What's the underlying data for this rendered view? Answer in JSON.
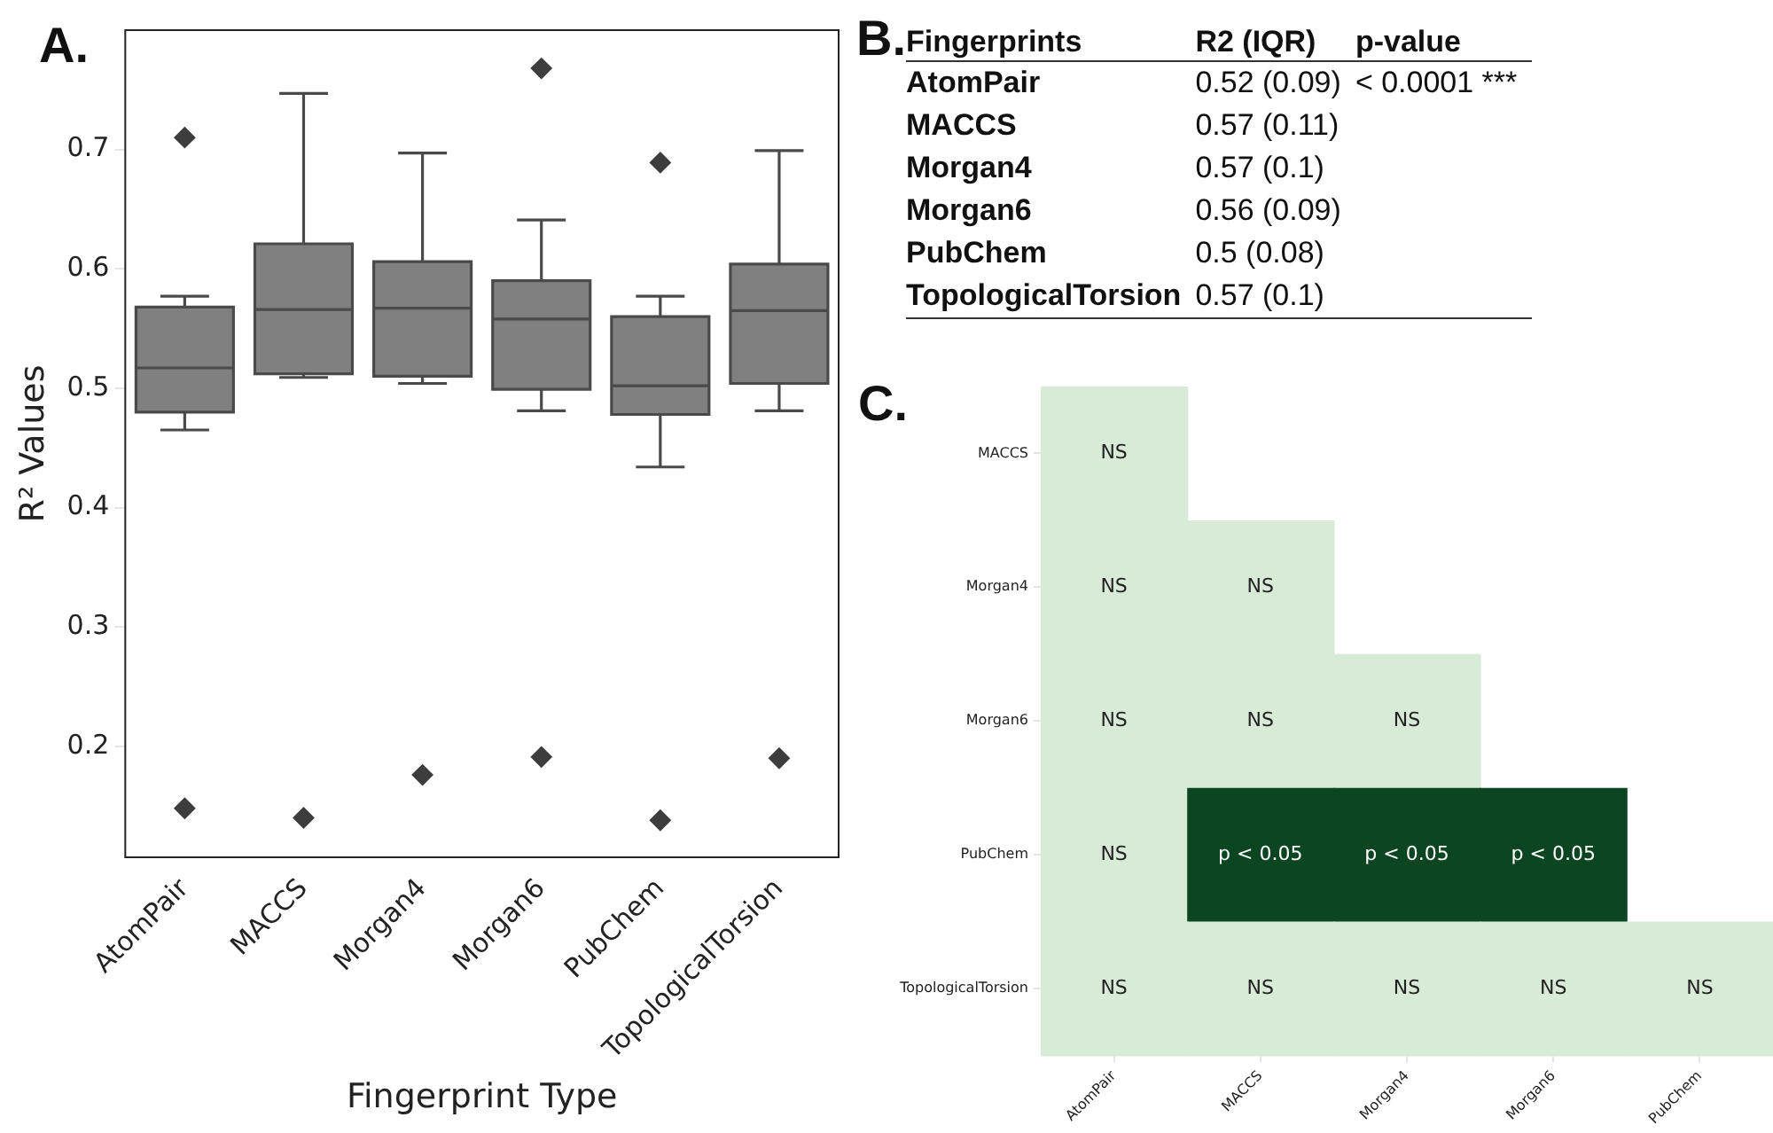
{
  "chart_data": [
    {
      "type": "box",
      "title": "A.",
      "xlabel": "Fingerprint Type",
      "ylabel": "R² Values",
      "categories": [
        "AtomPair",
        "MACCS",
        "Morgan4",
        "Morgan6",
        "PubChem",
        "TopologicalTorsion"
      ],
      "boxes": [
        {
          "low": 0.465,
          "q1": 0.48,
          "median": 0.517,
          "q3": 0.568,
          "high": 0.577,
          "outliers": [
            0.71,
            0.148
          ]
        },
        {
          "low": 0.509,
          "q1": 0.512,
          "median": 0.566,
          "q3": 0.621,
          "high": 0.747,
          "outliers": [
            0.14
          ]
        },
        {
          "low": 0.504,
          "q1": 0.51,
          "median": 0.567,
          "q3": 0.606,
          "high": 0.697,
          "outliers": [
            0.176
          ]
        },
        {
          "low": 0.481,
          "q1": 0.499,
          "median": 0.558,
          "q3": 0.59,
          "high": 0.641,
          "outliers": [
            0.768,
            0.191
          ]
        },
        {
          "low": 0.434,
          "q1": 0.478,
          "median": 0.502,
          "q3": 0.56,
          "high": 0.577,
          "outliers": [
            0.689,
            0.138
          ]
        },
        {
          "low": 0.481,
          "q1": 0.504,
          "median": 0.565,
          "q3": 0.604,
          "high": 0.699,
          "outliers": [
            0.19
          ]
        }
      ],
      "color": "#808080",
      "marker": "diamond",
      "ylim": [
        0.107,
        0.8
      ],
      "yticks": [
        0.2,
        0.3,
        0.4,
        0.5,
        0.6,
        0.7
      ]
    },
    {
      "type": "other",
      "title": "B.",
      "ylabel": "Fingerprints",
      "categories": [
        "R2 (IQR)",
        "p-value"
      ],
      "y_categories": [
        "AtomPair",
        "MACCS",
        "Morgan4",
        "Morgan6",
        "PubChem",
        "TopologicalTorsion"
      ],
      "cell_labels": [
        [
          "0.52 (0.09)",
          "< 0.0001 ***"
        ],
        [
          "0.57 (0.11)",
          null
        ],
        [
          "0.57 (0.1)",
          null
        ],
        [
          "0.56 (0.09)",
          null
        ],
        [
          "0.5 (0.08)",
          null
        ],
        [
          "0.57 (0.1)",
          null
        ]
      ]
    },
    {
      "type": "other",
      "title": "C.",
      "categories": [
        "AtomPair",
        "MACCS",
        "Morgan4",
        "Morgan6",
        "PubChem"
      ],
      "y_categories": [
        "MACCS",
        "Morgan4",
        "Morgan6",
        "PubChem",
        "TopologicalTorsion"
      ],
      "cell_labels": [
        [
          "NS",
          null,
          null,
          null,
          null
        ],
        [
          "NS",
          "NS",
          null,
          null,
          null
        ],
        [
          "NS",
          "NS",
          "NS",
          null,
          null
        ],
        [
          "NS",
          "p < 0.05",
          "p < 0.05",
          "p < 0.05",
          null
        ],
        [
          "NS",
          "NS",
          "NS",
          "NS",
          "NS"
        ]
      ],
      "colors": [
        [
          "#d8ebd6",
          null,
          null,
          null,
          null
        ],
        [
          "#d8ebd6",
          "#d8ebd6",
          null,
          null,
          null
        ],
        [
          "#d8ebd6",
          "#d8ebd6",
          "#d8ebd6",
          null,
          null
        ],
        [
          "#d8ebd6",
          "#0c4521",
          "#0c4521",
          "#0c4521",
          null
        ],
        [
          "#d8ebd6",
          "#d8ebd6",
          "#d8ebd6",
          "#d8ebd6",
          "#d8ebd6"
        ]
      ]
    }
  ]
}
